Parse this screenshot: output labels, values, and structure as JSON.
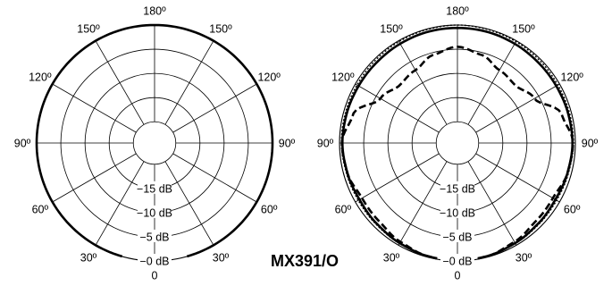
{
  "model_label": "MX391/O",
  "chart_data": [
    {
      "type": "polar",
      "radial_unit": "dB",
      "r_range_db": [
        -20,
        0
      ],
      "ring_labels": [
        "−15 dB",
        "−10 dB",
        "−5 dB",
        "−0 dB"
      ],
      "angle_labels": [
        {
          "deg": 0,
          "text": "0"
        },
        {
          "deg": 30,
          "text": "30º"
        },
        {
          "deg": 60,
          "text": "60º"
        },
        {
          "deg": 90,
          "text": "90º"
        },
        {
          "deg": 120,
          "text": "120º"
        },
        {
          "deg": 150,
          "text": "150º"
        },
        {
          "deg": 180,
          "text": "180º"
        },
        {
          "deg": -150,
          "text": "150º"
        },
        {
          "deg": -120,
          "text": "120º"
        },
        {
          "deg": -90,
          "text": "90º"
        },
        {
          "deg": -60,
          "text": "60º"
        },
        {
          "deg": -30,
          "text": "30º"
        }
      ],
      "series": [
        {
          "style": "solid",
          "angles": [
            0,
            30,
            60,
            90,
            120,
            150,
            180
          ],
          "values_db": [
            0,
            0,
            0,
            0,
            0,
            0,
            0
          ]
        }
      ]
    },
    {
      "type": "polar",
      "radial_unit": "dB",
      "r_range_db": [
        -20,
        0
      ],
      "ring_labels": [
        "−15 dB",
        "−10 dB",
        "−5 dB",
        "−0 dB"
      ],
      "angle_labels": [
        {
          "deg": 0,
          "text": "0"
        },
        {
          "deg": 30,
          "text": "30º"
        },
        {
          "deg": 60,
          "text": "60º"
        },
        {
          "deg": 90,
          "text": "90º"
        },
        {
          "deg": 120,
          "text": "120º"
        },
        {
          "deg": 150,
          "text": "150º"
        },
        {
          "deg": 180,
          "text": "180º"
        },
        {
          "deg": -150,
          "text": "150º"
        },
        {
          "deg": -120,
          "text": "120º"
        },
        {
          "deg": -90,
          "text": "90º"
        },
        {
          "deg": -60,
          "text": "60º"
        },
        {
          "deg": -30,
          "text": "30º"
        }
      ],
      "series": [
        {
          "style": "solid",
          "angles": [
            0,
            15,
            30,
            45,
            60,
            75,
            90,
            105,
            120,
            135,
            150,
            165,
            180
          ],
          "values_db": [
            0,
            -0.2,
            -0.5,
            -0.8,
            -1.0,
            -0.8,
            -0.6,
            -0.7,
            -0.8,
            -0.8,
            -0.7,
            -0.6,
            -0.6
          ]
        },
        {
          "style": "dotted",
          "angles": [
            0,
            15,
            30,
            45,
            60,
            75,
            90,
            105,
            120,
            135,
            150,
            165,
            180
          ],
          "values_db": [
            0,
            -0.1,
            -0.4,
            -0.6,
            -0.7,
            -0.6,
            -0.4,
            -0.4,
            -0.4,
            -0.3,
            -0.2,
            -0.1,
            0
          ]
        },
        {
          "style": "dashed",
          "angles": [
            0,
            15,
            30,
            45,
            60,
            75,
            90,
            105,
            120,
            135,
            150,
            165,
            180
          ],
          "values_db": [
            0,
            -0.2,
            -0.8,
            -1.5,
            -1.6,
            -0.8,
            -0.5,
            -2.0,
            -6.0,
            -7.5,
            -7.0,
            -5.5,
            -4.5
          ]
        }
      ]
    }
  ]
}
